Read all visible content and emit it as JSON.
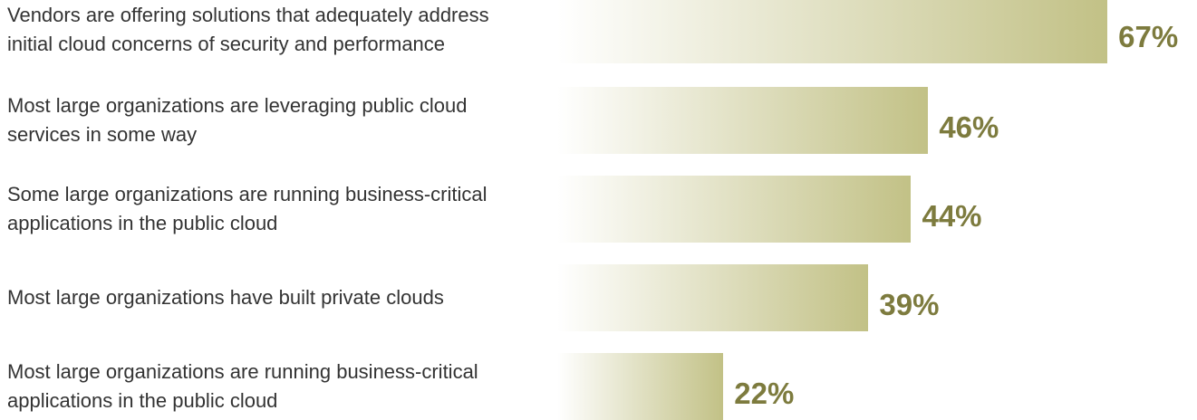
{
  "chart_data": {
    "type": "bar",
    "orientation": "horizontal",
    "color": "#c2c186",
    "categories": [
      "Vendors are offering solutions that adequately address\ninitial cloud concerns of security and performance",
      "Most large organizations are leveraging public cloud\nservices in some way",
      "Some large organizations are running business-critical\napplications in the public cloud",
      "Most large organizations have built private clouds",
      "Most large organizations are running business-critical\napplications in the public cloud"
    ],
    "values": [
      67,
      46,
      44,
      39,
      22
    ],
    "value_labels": [
      "67%",
      "46%",
      "44%",
      "39%",
      "22%"
    ]
  }
}
